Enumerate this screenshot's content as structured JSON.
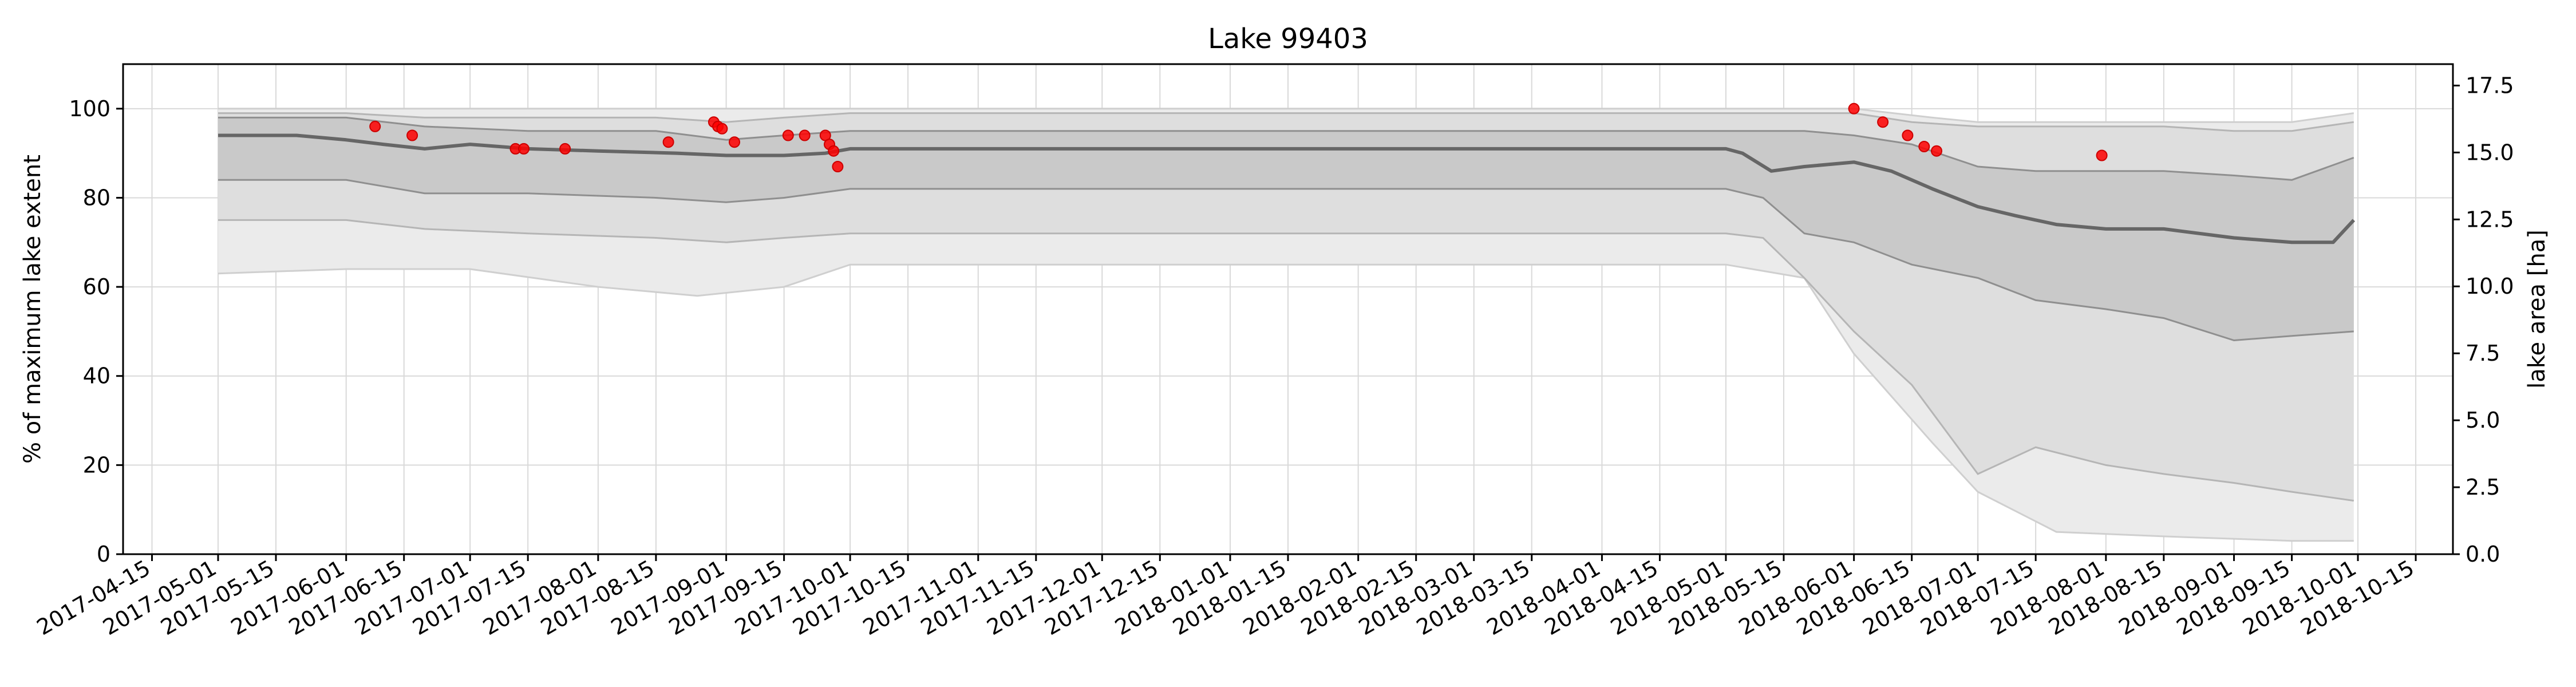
{
  "chart_data": {
    "type": "line",
    "title": "Lake 99403",
    "xlabel": "",
    "ylabel": "% of maximum lake extent",
    "y2label": "lake area [ha]",
    "xlim": [
      "2017-04-08",
      "2018-10-24"
    ],
    "ylim": [
      0,
      110
    ],
    "y2lim": [
      0,
      18.3
    ],
    "grid": true,
    "colors": {
      "median": "#666666",
      "band": "#9a9a9a",
      "points": "#ff0000"
    },
    "x_ticks": [
      "2017-04-15",
      "2017-05-01",
      "2017-05-15",
      "2017-06-01",
      "2017-06-15",
      "2017-07-01",
      "2017-07-15",
      "2017-08-01",
      "2017-08-15",
      "2017-09-01",
      "2017-09-15",
      "2017-10-01",
      "2017-10-15",
      "2017-11-01",
      "2017-11-15",
      "2017-12-01",
      "2017-12-15",
      "2018-01-01",
      "2018-01-15",
      "2018-02-01",
      "2018-02-15",
      "2018-03-01",
      "2018-03-15",
      "2018-04-01",
      "2018-04-15",
      "2018-05-01",
      "2018-05-15",
      "2018-06-01",
      "2018-06-15",
      "2018-07-01",
      "2018-07-15",
      "2018-08-01",
      "2018-08-15",
      "2018-09-01",
      "2018-09-15",
      "2018-10-01",
      "2018-10-15"
    ],
    "y_ticks": [
      "0",
      "20",
      "40",
      "60",
      "80",
      "100"
    ],
    "y2_ticks": [
      "0.0",
      "2.5",
      "5.0",
      "7.5",
      "10.0",
      "12.5",
      "15.0",
      "17.5"
    ],
    "series": [
      {
        "role": "median",
        "x": [
          "2017-05-01",
          "2017-05-20",
          "2017-06-01",
          "2017-06-10",
          "2017-06-20",
          "2017-07-01",
          "2017-07-15",
          "2017-08-01",
          "2017-08-20",
          "2017-09-01",
          "2017-09-15",
          "2017-09-25",
          "2017-10-01",
          "2018-05-01",
          "2018-05-05",
          "2018-05-12",
          "2018-05-20",
          "2018-06-01",
          "2018-06-10",
          "2018-06-20",
          "2018-07-01",
          "2018-07-10",
          "2018-07-20",
          "2018-08-01",
          "2018-08-15",
          "2018-09-01",
          "2018-09-15",
          "2018-09-25",
          "2018-09-30"
        ],
        "y": [
          94,
          94,
          93,
          92,
          91,
          92,
          91,
          90.5,
          90,
          89.5,
          89.5,
          90,
          91,
          91,
          90,
          86,
          87,
          88,
          86,
          82,
          78,
          76,
          74,
          73,
          73,
          71,
          70,
          70,
          75
        ]
      },
      {
        "role": "band_inner",
        "x": [
          "2017-05-01",
          "2017-06-01",
          "2017-06-20",
          "2017-07-15",
          "2017-08-15",
          "2017-09-01",
          "2017-09-15",
          "2017-10-01",
          "2018-05-01",
          "2018-05-10",
          "2018-05-20",
          "2018-06-01",
          "2018-06-15",
          "2018-07-01",
          "2018-07-15",
          "2018-08-01",
          "2018-08-15",
          "2018-09-01",
          "2018-09-15",
          "2018-09-30"
        ],
        "low": [
          84,
          84,
          81,
          81,
          80,
          79,
          80,
          82,
          82,
          80,
          72,
          70,
          65,
          62,
          57,
          55,
          53,
          48,
          49,
          50
        ],
        "high": [
          98,
          98,
          96,
          95,
          95,
          93,
          94,
          95,
          95,
          95,
          95,
          94,
          92,
          87,
          86,
          86,
          86,
          85,
          84,
          89
        ]
      },
      {
        "role": "band_outer",
        "x": [
          "2017-05-01",
          "2017-06-01",
          "2017-06-20",
          "2017-07-15",
          "2017-08-15",
          "2017-09-01",
          "2017-09-15",
          "2017-10-01",
          "2018-05-01",
          "2018-05-10",
          "2018-05-20",
          "2018-06-01",
          "2018-06-15",
          "2018-07-01",
          "2018-07-15",
          "2018-08-01",
          "2018-08-15",
          "2018-09-01",
          "2018-09-15",
          "2018-09-30"
        ],
        "low": [
          75,
          75,
          73,
          72,
          71,
          70,
          71,
          72,
          72,
          71,
          62,
          50,
          38,
          18,
          24,
          20,
          18,
          16,
          14,
          12
        ],
        "high": [
          99,
          99,
          98,
          98,
          98,
          97,
          98,
          99,
          99,
          99,
          99,
          99,
          97,
          96,
          96,
          96,
          96,
          95,
          95,
          97
        ]
      },
      {
        "role": "band_max",
        "x": [
          "2017-05-01",
          "2017-06-01",
          "2017-07-01",
          "2017-08-01",
          "2017-08-25",
          "2017-09-15",
          "2017-10-01",
          "2018-05-01",
          "2018-05-20",
          "2018-06-01",
          "2018-06-20",
          "2018-07-01",
          "2018-07-20",
          "2018-08-15",
          "2018-09-15",
          "2018-09-30"
        ],
        "low": [
          63,
          64,
          64,
          60,
          58,
          60,
          65,
          65,
          62,
          45,
          25,
          14,
          5,
          4,
          3,
          3
        ],
        "high": [
          100,
          100,
          100,
          100,
          100,
          100,
          100,
          100,
          100,
          100,
          98,
          97,
          97,
          97,
          97,
          99
        ]
      },
      {
        "role": "observations",
        "x": [
          "2017-06-08",
          "2017-06-17",
          "2017-07-12",
          "2017-07-14",
          "2017-07-24",
          "2017-08-18",
          "2017-08-29",
          "2017-08-30",
          "2017-08-31",
          "2017-09-03",
          "2017-09-16",
          "2017-09-20",
          "2017-09-25",
          "2017-09-26",
          "2017-09-27",
          "2017-09-28",
          "2018-06-01",
          "2018-06-08",
          "2018-06-14",
          "2018-06-18",
          "2018-06-21",
          "2018-07-31"
        ],
        "y": [
          96,
          94,
          91,
          91,
          91,
          92.5,
          97,
          96,
          95.5,
          92.5,
          94,
          94,
          94,
          92,
          90.5,
          87,
          100,
          97,
          94,
          91.5,
          90.5,
          89.5
        ]
      }
    ]
  }
}
